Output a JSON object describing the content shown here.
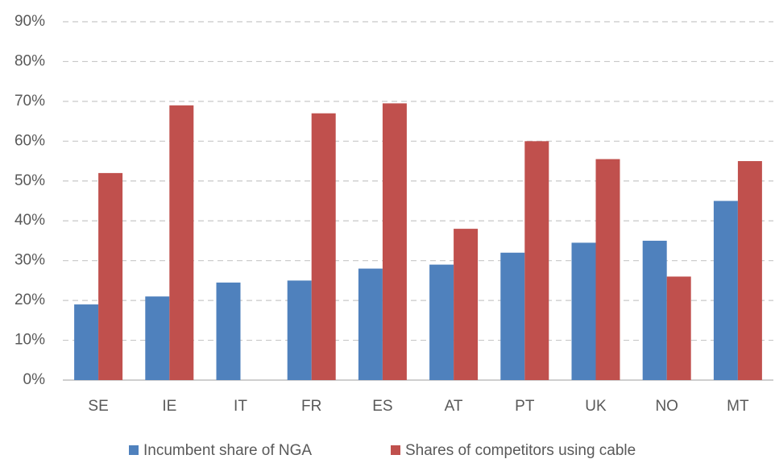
{
  "chart_data": {
    "type": "bar",
    "categories": [
      "SE",
      "IE",
      "IT",
      "FR",
      "ES",
      "AT",
      "PT",
      "UK",
      "NO",
      "MT"
    ],
    "series": [
      {
        "name": "Incumbent share of NGA",
        "color": "#4f81bd",
        "values": [
          19,
          21,
          24.5,
          25,
          28,
          29,
          32,
          34.5,
          35,
          45
        ]
      },
      {
        "name": "Shares of competitors using cable",
        "color": "#c0504d",
        "values": [
          52,
          69,
          null,
          67,
          69.5,
          38,
          60,
          55.5,
          26,
          55
        ]
      }
    ],
    "ylim": [
      0,
      90
    ],
    "yticks": [
      {
        "value": 0,
        "label": "0%"
      },
      {
        "value": 10,
        "label": "10%"
      },
      {
        "value": 20,
        "label": "20%"
      },
      {
        "value": 30,
        "label": "30%"
      },
      {
        "value": 40,
        "label": "40%"
      },
      {
        "value": 50,
        "label": "50%"
      },
      {
        "value": 60,
        "label": "60%"
      },
      {
        "value": 70,
        "label": "70%"
      },
      {
        "value": 80,
        "label": "80%"
      },
      {
        "value": 90,
        "label": "90%"
      }
    ],
    "grid": true,
    "legend": "bottom"
  }
}
